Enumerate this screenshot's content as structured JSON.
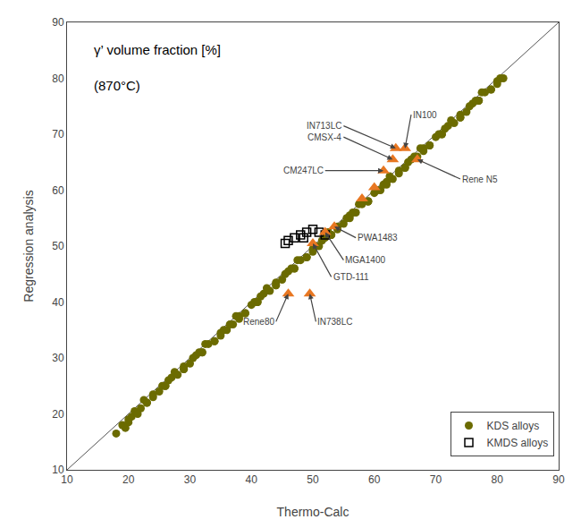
{
  "chart_data": {
    "type": "scatter",
    "title": "γ’ volume fraction [%]",
    "subtitle": "(870°C)",
    "xlabel": "Thermo-Calc",
    "ylabel": "Regression analysis",
    "xlim": [
      10,
      90
    ],
    "ylim": [
      10,
      90
    ],
    "xticks": [
      10,
      20,
      30,
      40,
      50,
      60,
      70,
      80,
      90
    ],
    "yticks": [
      10,
      20,
      30,
      40,
      50,
      60,
      70,
      80,
      90
    ],
    "grid": false,
    "legend": "lower right",
    "series": [
      {
        "type": "line",
        "color": "#555555",
        "line_style": "solid",
        "x": [
          10,
          90
        ],
        "values": [
          10,
          90
        ]
      },
      {
        "type": "scatter",
        "name": "KDS alloys",
        "color": "#6b6b00",
        "marker": "circle",
        "x": [
          18,
          19.5,
          20,
          21,
          22,
          23,
          24,
          25,
          26,
          27,
          28,
          29,
          30,
          31,
          32,
          33,
          34,
          35,
          36,
          37,
          38,
          39,
          40,
          41,
          42,
          43,
          44,
          45,
          46,
          47,
          48,
          49,
          50,
          51,
          52,
          53,
          54,
          55,
          56,
          57,
          58,
          59,
          60,
          61,
          62,
          63,
          64,
          65,
          66,
          67,
          68,
          69,
          70,
          71,
          72,
          73,
          74,
          75,
          76,
          77,
          78,
          79,
          80,
          81,
          19,
          20.5,
          21.5,
          22.5,
          24,
          25.5,
          26.5,
          27.5,
          29,
          30.5,
          31.5,
          32.5,
          34,
          35.5,
          36.5,
          37.5,
          39,
          40.5,
          41.5,
          42.5,
          44,
          45.5,
          46.5,
          47.5,
          49,
          50.5,
          51.5,
          52.5,
          54,
          55.5,
          56.5,
          57.5,
          59,
          60.5,
          61.5,
          62.5,
          64,
          65.5,
          66.5,
          67.5,
          69,
          70.5,
          71.5,
          72.5,
          74,
          75.5,
          76.5,
          77.5,
          79,
          80.5,
          20,
          23,
          26,
          29,
          32,
          35,
          38,
          41,
          44,
          47,
          50,
          53,
          56,
          59,
          62,
          65,
          68,
          71,
          74,
          77,
          80
        ],
        "values": [
          16.5,
          17.5,
          19,
          20.5,
          21,
          22,
          23.5,
          24,
          25,
          26.5,
          27,
          28.5,
          29,
          30.5,
          31,
          32.5,
          33,
          34.5,
          35,
          36,
          37.5,
          38,
          39.5,
          40,
          41.5,
          42,
          43.5,
          44,
          45.5,
          46,
          47.5,
          48,
          49.5,
          50,
          51.5,
          52,
          53.5,
          54,
          55.5,
          56,
          57.5,
          58,
          59.5,
          60,
          61.5,
          62,
          63.5,
          64,
          65.5,
          66,
          67.5,
          68,
          69.5,
          70,
          71.5,
          72,
          73.5,
          74,
          75.5,
          76,
          77.5,
          78,
          79.5,
          80,
          18,
          19.5,
          20,
          22.5,
          23,
          25,
          26,
          27.5,
          28,
          30,
          31,
          32.5,
          33,
          35,
          36,
          37.5,
          38,
          40,
          41,
          42.5,
          43,
          45,
          46,
          47.5,
          48,
          50,
          51,
          52.5,
          53,
          55,
          56,
          57.5,
          58,
          60,
          61,
          62.5,
          63,
          65,
          66,
          67.5,
          68,
          70,
          71,
          72.5,
          73,
          75,
          76,
          77.5,
          78,
          80,
          18.5,
          22,
          25,
          28,
          31,
          34,
          37,
          40,
          43,
          46,
          49,
          52,
          55,
          58,
          61,
          64,
          67,
          70,
          73,
          76,
          79
        ]
      },
      {
        "type": "scatter",
        "name": "KMDS alloys",
        "color": "#000000",
        "marker": "square-open",
        "x": [
          46.0,
          47.0,
          48.0,
          49.0,
          50.0,
          51.0,
          52.0,
          45.5,
          48.5
        ],
        "values": [
          51.0,
          51.5,
          52.0,
          52.5,
          53.0,
          52.5,
          52.0,
          50.5,
          51.5
        ]
      },
      {
        "type": "scatter",
        "color": "#e87722",
        "marker": "triangle-up",
        "x": [
          46.0,
          49.5,
          50.0,
          52.0,
          53.5,
          58.0,
          60.0,
          61.5,
          63.0,
          63.5,
          65.0,
          67.0
        ],
        "values": [
          41.5,
          41.5,
          50.5,
          52.5,
          53.5,
          58.5,
          60.5,
          63.5,
          65.5,
          67.5,
          67.5,
          65.5
        ]
      }
    ],
    "annotations": [
      {
        "text": "Rene80",
        "x": 46.0,
        "y": 41.5,
        "text_x": 44.0,
        "text_y": 36.5
      },
      {
        "text": "IN738LC",
        "x": 49.5,
        "y": 41.5,
        "text_x": 50.5,
        "text_y": 36.5
      },
      {
        "text": "GTD-111",
        "x": 50.0,
        "y": 50.5,
        "text_x": 53.0,
        "text_y": 44.5
      },
      {
        "text": "MGA1400",
        "x": 52.0,
        "y": 52.5,
        "text_x": 55.0,
        "text_y": 47.5
      },
      {
        "text": "PWA1483",
        "x": 53.5,
        "y": 53.5,
        "text_x": 57.0,
        "text_y": 51.5
      },
      {
        "text": "CM247LC",
        "x": 61.5,
        "y": 63.5,
        "text_x": 52.0,
        "text_y": 63.5
      },
      {
        "text": "CMSX-4",
        "x": 63.0,
        "y": 65.5,
        "text_x": 55.0,
        "text_y": 69.5
      },
      {
        "text": "IN713LC",
        "x": 63.5,
        "y": 67.5,
        "text_x": 55.0,
        "text_y": 71.5
      },
      {
        "text": "IN100",
        "x": 65.0,
        "y": 67.5,
        "text_x": 66.0,
        "text_y": 73.5
      },
      {
        "text": "Rene N5",
        "x": 67.0,
        "y": 65.5,
        "text_x": 74.0,
        "text_y": 62.0
      }
    ]
  }
}
